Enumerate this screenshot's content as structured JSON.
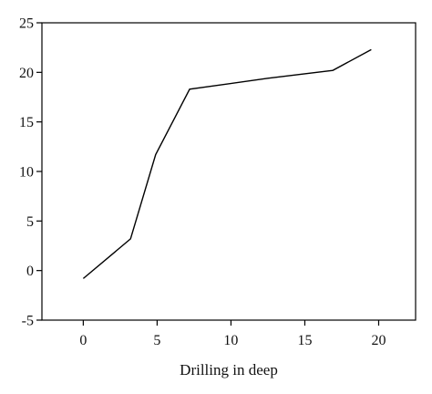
{
  "chart_data": {
    "type": "line",
    "title": "",
    "xlabel": "Drilling in deep",
    "ylabel": "",
    "xlim": [
      -2.8,
      22.5
    ],
    "ylim": [
      -5,
      25
    ],
    "xticks": [
      0,
      5,
      10,
      15,
      20
    ],
    "yticks": [
      -5,
      0,
      5,
      10,
      15,
      20,
      25
    ],
    "grid": false,
    "series": [
      {
        "color": "#000000",
        "x": [
          0,
          3.2,
          4.9,
          7.2,
          12.5,
          16.9,
          19.5
        ],
        "y": [
          -0.8,
          3.2,
          11.7,
          18.3,
          19.4,
          20.2,
          22.3
        ]
      }
    ]
  }
}
